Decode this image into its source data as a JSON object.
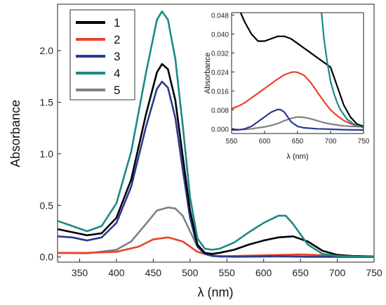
{
  "chart_data": [
    {
      "type": "line",
      "xlabel": "λ (nm)",
      "ylabel": "Absorbance",
      "xlim": [
        320,
        750
      ],
      "ylim": [
        -0.05,
        2.45
      ],
      "xticks": [
        350,
        400,
        450,
        500,
        550,
        600,
        650,
        700,
        750
      ],
      "yticks": [
        0.0,
        0.5,
        1.0,
        1.5,
        2.0
      ],
      "ytick_labels": [
        "0.0",
        "0.5",
        "1.0",
        "1.5",
        "2.0"
      ],
      "legend": {
        "position": "top-left",
        "entries": [
          "1",
          "2",
          "3",
          "4",
          "5"
        ]
      },
      "series": [
        {
          "name": "1",
          "color": "#000000",
          "x": [
            320,
            340,
            360,
            380,
            400,
            420,
            440,
            455,
            462,
            470,
            480,
            490,
            500,
            510,
            520,
            530,
            540,
            560,
            580,
            600,
            620,
            640,
            660,
            680,
            700,
            720,
            750
          ],
          "y": [
            0.27,
            0.24,
            0.21,
            0.23,
            0.38,
            0.75,
            1.38,
            1.79,
            1.87,
            1.82,
            1.52,
            0.98,
            0.45,
            0.12,
            0.04,
            0.03,
            0.04,
            0.07,
            0.12,
            0.16,
            0.19,
            0.2,
            0.15,
            0.06,
            0.02,
            0.01,
            0.005
          ]
        },
        {
          "name": "2",
          "color": "#e8432b",
          "x": [
            320,
            360,
            400,
            430,
            450,
            470,
            490,
            510,
            530,
            550,
            600,
            650,
            700,
            750
          ],
          "y": [
            0.04,
            0.04,
            0.05,
            0.1,
            0.17,
            0.19,
            0.15,
            0.05,
            0.01,
            0.008,
            0.016,
            0.024,
            0.012,
            0.004
          ]
        },
        {
          "name": "3",
          "color": "#2b3a8f",
          "x": [
            320,
            340,
            360,
            380,
            400,
            420,
            440,
            455,
            462,
            470,
            480,
            490,
            500,
            510,
            520,
            530,
            540,
            560,
            600,
            620,
            640,
            660,
            700,
            750
          ],
          "y": [
            0.2,
            0.19,
            0.16,
            0.19,
            0.33,
            0.68,
            1.26,
            1.63,
            1.7,
            1.64,
            1.35,
            0.85,
            0.38,
            0.1,
            0.03,
            0.01,
            0.005,
            0.003,
            0.006,
            0.008,
            0.004,
            0.002,
            0.001,
            0.0
          ]
        },
        {
          "name": "4",
          "color": "#1a8a84",
          "x": [
            320,
            340,
            360,
            380,
            400,
            420,
            440,
            455,
            462,
            470,
            480,
            490,
            500,
            510,
            520,
            530,
            540,
            560,
            580,
            600,
            620,
            630,
            640,
            660,
            680,
            700,
            720,
            750
          ],
          "y": [
            0.35,
            0.3,
            0.25,
            0.3,
            0.52,
            1.02,
            1.78,
            2.3,
            2.38,
            2.3,
            1.92,
            1.28,
            0.58,
            0.18,
            0.08,
            0.07,
            0.08,
            0.14,
            0.24,
            0.33,
            0.4,
            0.4,
            0.32,
            0.12,
            0.03,
            0.01,
            0.005,
            0.003
          ]
        },
        {
          "name": "5",
          "color": "#808080",
          "x": [
            320,
            360,
            400,
            420,
            440,
            455,
            470,
            480,
            490,
            500,
            510,
            520,
            540,
            560,
            600,
            620,
            640,
            660,
            700,
            750
          ],
          "y": [
            0.04,
            0.035,
            0.07,
            0.15,
            0.32,
            0.45,
            0.48,
            0.47,
            0.4,
            0.25,
            0.1,
            0.03,
            0.005,
            0.002,
            0.003,
            0.004,
            0.005,
            0.004,
            0.002,
            0.0
          ]
        }
      ]
    },
    {
      "type": "line",
      "xlabel": "λ (nm)",
      "ylabel": "Absorbance",
      "xlim": [
        550,
        750
      ],
      "ylim": [
        -0.002,
        0.049
      ],
      "xticks": [
        550,
        600,
        650,
        700,
        750
      ],
      "yticks": [
        0.0,
        0.008,
        0.016,
        0.024,
        0.032,
        0.04,
        0.048
      ],
      "ytick_labels": [
        "0.000",
        "0.008",
        "0.016",
        "0.024",
        "0.032",
        "0.040",
        "0.048"
      ],
      "series": [
        {
          "name": "1",
          "color": "#000000",
          "x": [
            562,
            570,
            580,
            590,
            600,
            610,
            620,
            630,
            640,
            650,
            660,
            670,
            680,
            690,
            700,
            710,
            720,
            730,
            740,
            750
          ],
          "y": [
            0.05,
            0.045,
            0.04,
            0.037,
            0.037,
            0.038,
            0.039,
            0.039,
            0.038,
            0.036,
            0.034,
            0.032,
            0.03,
            0.028,
            0.026,
            0.018,
            0.01,
            0.005,
            0.002,
            0.001
          ]
        },
        {
          "name": "2",
          "color": "#e8432b",
          "x": [
            550,
            560,
            570,
            580,
            590,
            600,
            610,
            620,
            630,
            640,
            645,
            650,
            660,
            670,
            680,
            690,
            700,
            710,
            720,
            730,
            740,
            750
          ],
          "y": [
            0.0085,
            0.0095,
            0.011,
            0.013,
            0.015,
            0.017,
            0.019,
            0.021,
            0.0228,
            0.0238,
            0.024,
            0.0238,
            0.0225,
            0.0195,
            0.0155,
            0.0115,
            0.008,
            0.0055,
            0.0035,
            0.0022,
            0.0012,
            0.0006
          ]
        },
        {
          "name": "3",
          "color": "#2b3a8f",
          "x": [
            550,
            560,
            570,
            580,
            590,
            600,
            610,
            620,
            625,
            630,
            640,
            650,
            660,
            670,
            680,
            700,
            720,
            740,
            750
          ],
          "y": [
            -0.0005,
            -0.0005,
            0.0,
            0.001,
            0.003,
            0.005,
            0.007,
            0.0082,
            0.008,
            0.007,
            0.003,
            0.001,
            0.0004,
            0.0002,
            0.0,
            -0.0002,
            -0.0004,
            -0.0005,
            -0.0005
          ]
        },
        {
          "name": "4",
          "color": "#1a8a84",
          "x": [
            686,
            690,
            695,
            700,
            705,
            710,
            715,
            720,
            725,
            730,
            735,
            740,
            745,
            750
          ],
          "y": [
            0.05,
            0.038,
            0.028,
            0.02,
            0.015,
            0.011,
            0.008,
            0.006,
            0.004,
            0.003,
            0.002,
            0.0015,
            0.001,
            0.0005
          ]
        },
        {
          "name": "5",
          "color": "#808080",
          "x": [
            550,
            560,
            570,
            580,
            590,
            600,
            610,
            620,
            630,
            640,
            650,
            660,
            670,
            680,
            690,
            700,
            710,
            720,
            730,
            740,
            750
          ],
          "y": [
            0.0,
            -0.0003,
            -0.0003,
            0.0,
            0.0004,
            0.0008,
            0.0014,
            0.0022,
            0.0034,
            0.0044,
            0.005,
            0.0048,
            0.0042,
            0.0034,
            0.0026,
            0.002,
            0.0016,
            0.0012,
            0.001,
            0.0009,
            0.0009
          ]
        }
      ]
    }
  ]
}
